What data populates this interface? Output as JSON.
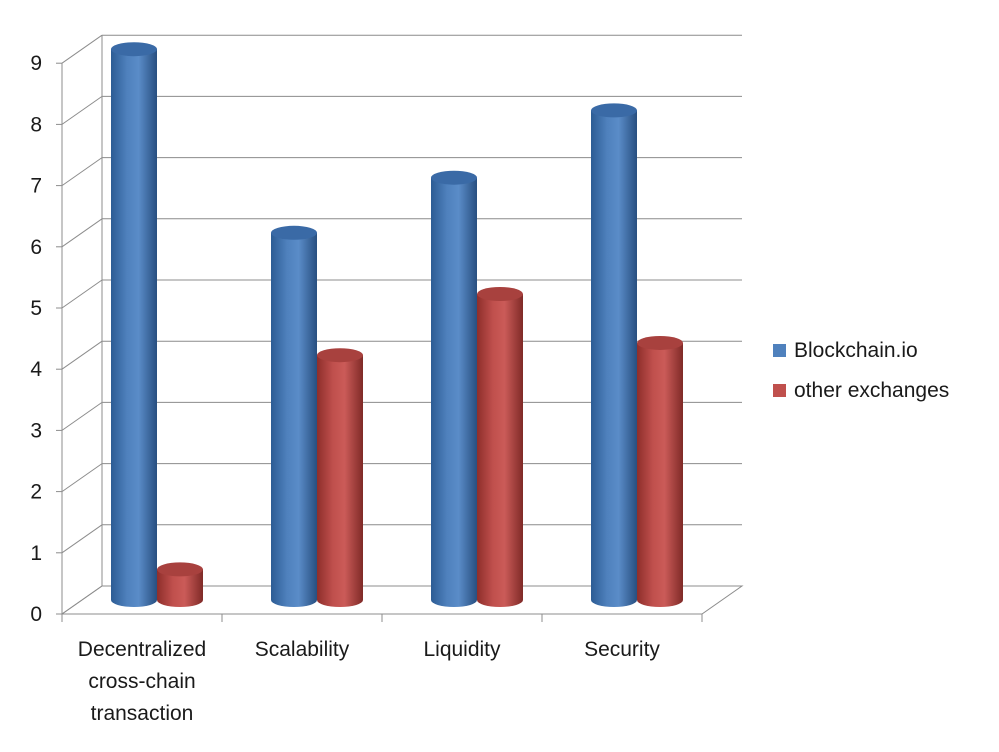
{
  "chart_data": {
    "type": "bar",
    "style": "3d-cylinder",
    "categories": [
      "Decentralized cross-chain transaction",
      "Scalability",
      "Liquidity",
      "Security"
    ],
    "category_label_lines": [
      [
        "Decentralized",
        "cross-chain",
        "transaction"
      ],
      [
        "Scalability"
      ],
      [
        "Liquidity"
      ],
      [
        "Security"
      ]
    ],
    "series": [
      {
        "name": "Blockchain.io",
        "values": [
          9,
          6,
          6.9,
          8
        ],
        "color": "#4f81bd"
      },
      {
        "name": "other exchanges",
        "values": [
          0.5,
          4,
          5,
          4.2
        ],
        "color": "#c0504d"
      }
    ],
    "ylim": [
      0,
      9
    ],
    "yticks": [
      "0",
      "1",
      "2",
      "3",
      "4",
      "5",
      "6",
      "7",
      "8",
      "9"
    ],
    "grid": true,
    "legend_position": "right",
    "title": "",
    "xlabel": "",
    "ylabel": ""
  }
}
